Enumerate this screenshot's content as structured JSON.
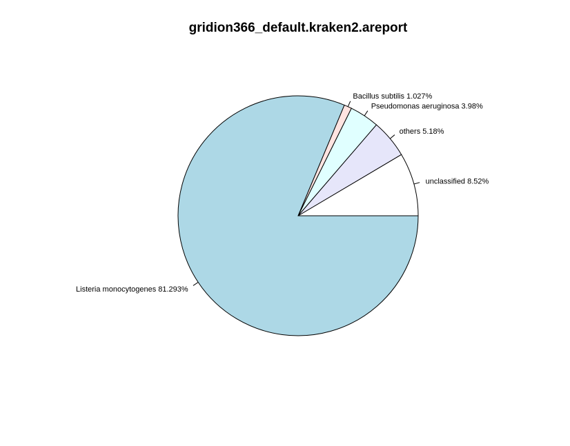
{
  "chart_data": {
    "type": "pie",
    "title": "gridion366_default.kraken2.areport",
    "slices": [
      {
        "name": "unclassified",
        "value": 8.52,
        "label": "unclassified 8.52%",
        "color": "#ffffff"
      },
      {
        "name": "others",
        "value": 5.18,
        "label": "others 5.18%",
        "color": "#e6e6fa"
      },
      {
        "name": "Pseudomonas aeruginosa",
        "value": 3.98,
        "label": "Pseudomonas aeruginosa 3.98%",
        "color": "#e0ffff"
      },
      {
        "name": "Bacillus subtilis",
        "value": 1.027,
        "label": "Bacillus subtilis 1.027%",
        "color": "#ffe4e1"
      },
      {
        "name": "Listeria monocytogenes",
        "value": 81.293,
        "label": "Listeria monocytogenes 81.293%",
        "color": "#add8e6"
      }
    ]
  }
}
